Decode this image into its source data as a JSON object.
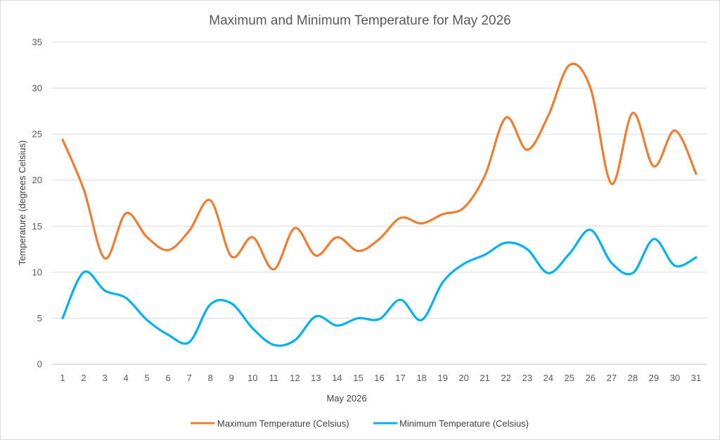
{
  "chart_data": {
    "type": "line",
    "title": "Maximum and Minimum Temperature for May 2026",
    "xlabel": "May 2026",
    "ylabel": "Temperature (degrees Celsius)",
    "ylim": [
      0,
      35
    ],
    "ytick_step": 5,
    "grid": true,
    "legend_position": "bottom",
    "smooth": true,
    "x": [
      1,
      2,
      3,
      4,
      5,
      6,
      7,
      8,
      9,
      10,
      11,
      12,
      13,
      14,
      15,
      16,
      17,
      18,
      19,
      20,
      21,
      22,
      23,
      24,
      25,
      26,
      27,
      28,
      29,
      30,
      31
    ],
    "series": [
      {
        "name": "Maximum Temperature (Celsius)",
        "color": "#ed7d31",
        "values": [
          24.4,
          19,
          11.5,
          16.4,
          13.8,
          12.4,
          14.5,
          17.8,
          11.7,
          13.8,
          10.3,
          14.8,
          11.8,
          13.8,
          12.3,
          13.6,
          15.9,
          15.3,
          16.3,
          17,
          20.5,
          26.8,
          23.3,
          27,
          32.5,
          30,
          19.6,
          27.3,
          21.5,
          25.4,
          20.7
        ]
      },
      {
        "name": "Minimum Temperature (Celsius)",
        "color": "#00b0f0",
        "values": [
          5,
          10,
          8,
          7.2,
          4.8,
          3.2,
          2.4,
          6.5,
          6.6,
          3.9,
          2.1,
          2.6,
          5.2,
          4.2,
          5,
          4.9,
          7,
          4.8,
          8.9,
          10.9,
          11.9,
          13.2,
          12.5,
          9.9,
          12,
          14.6,
          11,
          9.9,
          13.6,
          10.7,
          11.6
        ]
      }
    ]
  }
}
